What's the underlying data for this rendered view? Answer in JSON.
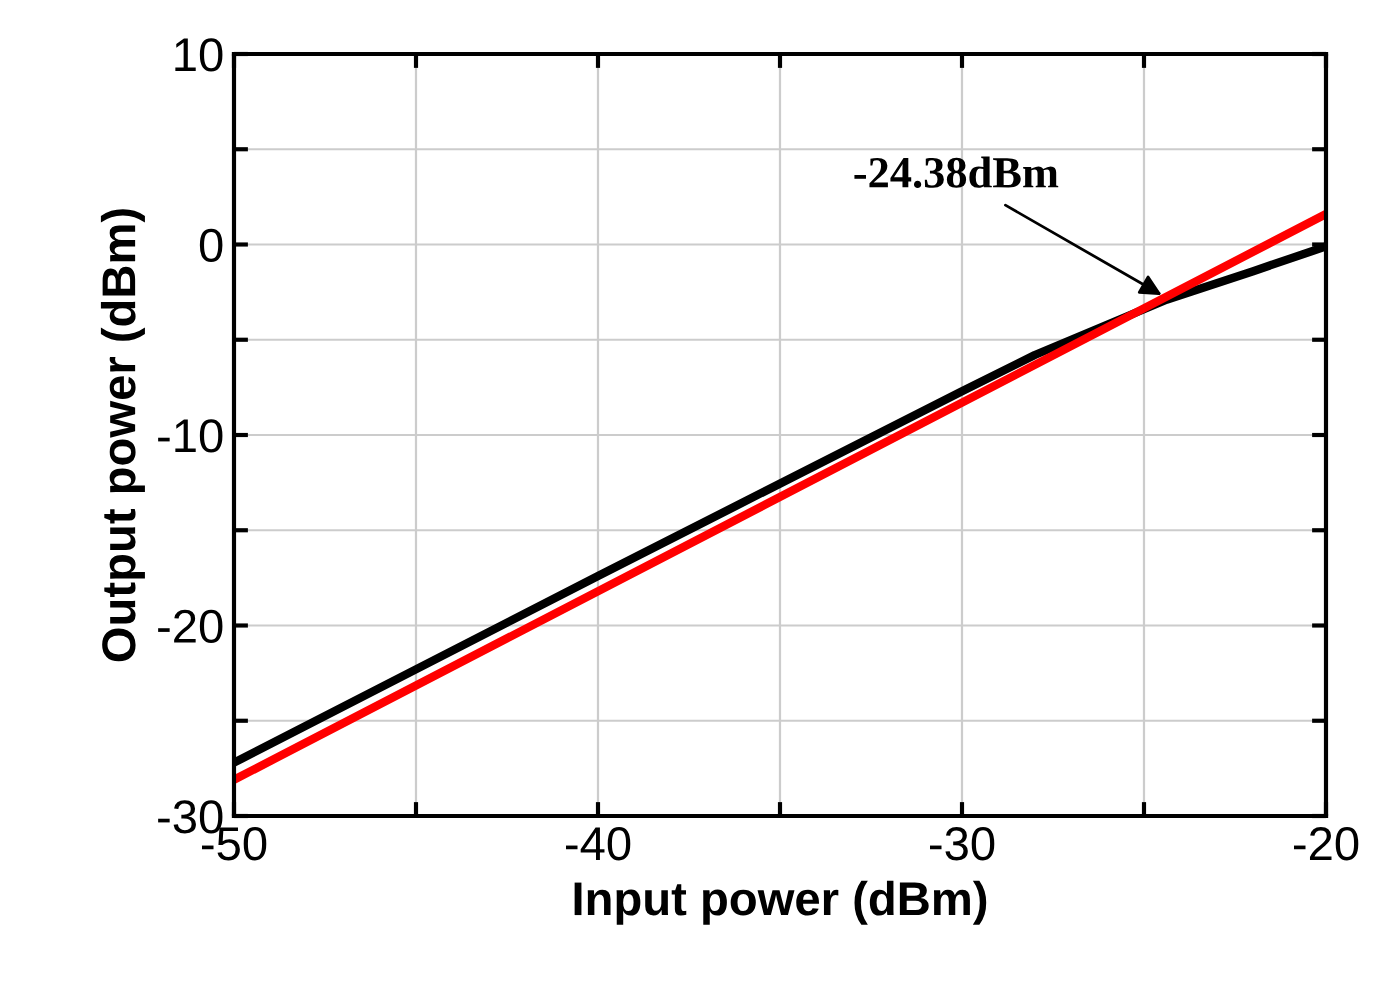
{
  "chart_data": {
    "type": "line",
    "xlabel": "Input power (dBm)",
    "ylabel": "Output power (dBm)",
    "xlim": [
      -50,
      -20
    ],
    "ylim": [
      -30,
      10
    ],
    "xticks": [
      -50,
      {
        "value": -45,
        "label": null
      },
      -40,
      {
        "value": -35,
        "label": null
      },
      -30,
      {
        "value": -25,
        "label": null
      },
      -20
    ],
    "yticks": [
      -30,
      {
        "value": -25,
        "label": null
      },
      -20,
      {
        "value": -15,
        "label": null
      },
      -10,
      {
        "value": -5,
        "label": null
      },
      0,
      {
        "value": 5,
        "label": null
      },
      10
    ],
    "grid": true,
    "legend": false,
    "marker": "none",
    "line_style": "solid",
    "series": [
      {
        "color": "#000000",
        "x": [
          -50,
          -40,
          -30,
          -28,
          -24.38,
          -22,
          -20
        ],
        "values": [
          -27.2,
          -17.4,
          -7.7,
          -5.8,
          -2.9,
          -1.4,
          -0.1
        ]
      },
      {
        "color": "#ff0000",
        "x": [
          -50,
          -20
        ],
        "values": [
          -28.1,
          1.6
        ]
      }
    ],
    "annotations": [
      {
        "text": "-24.38dBm",
        "x": -24.38,
        "y": -2.8
      }
    ]
  }
}
